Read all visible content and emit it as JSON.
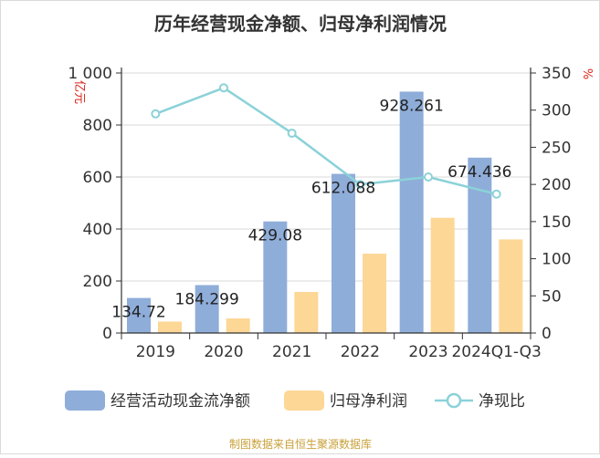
{
  "colors": {
    "bar1": "#8fadd9",
    "bar2": "#fdd796",
    "line": "#8bd2d8",
    "unit": "#d9251c",
    "source": "#c9a13b",
    "grid": "#d8d8d8",
    "axis": "#333333",
    "title": "#333333"
  },
  "chart_data": {
    "type": "bar+line",
    "title": "历年经营现金净额、归母净利润情况",
    "categories": [
      "2019",
      "2020",
      "2021",
      "2022",
      "2023",
      "2024Q1-Q3"
    ],
    "series": [
      {
        "name": "经营活动现金流净额",
        "type": "bar",
        "axis": "left",
        "values": [
          134.72,
          184.299,
          429.08,
          612.088,
          928.261,
          674.436
        ],
        "labels": [
          "134.72",
          "184.299",
          "429.08",
          "612.088",
          "928.261",
          "674.436"
        ]
      },
      {
        "name": "归母净利润",
        "type": "bar",
        "axis": "left",
        "values": [
          44,
          56,
          158,
          305,
          443,
          360
        ]
      },
      {
        "name": "净现比",
        "type": "line",
        "axis": "right",
        "values": [
          295,
          330,
          269,
          200,
          210,
          187
        ]
      }
    ],
    "y_left": {
      "unit": "亿元",
      "min": 0,
      "max": 1000,
      "ticks": [
        0,
        200,
        400,
        600,
        800,
        1000
      ],
      "tick_labels": [
        "0",
        "200",
        "400",
        "600",
        "800",
        "1 000"
      ]
    },
    "y_right": {
      "unit": "%",
      "min": 0,
      "max": 350,
      "ticks": [
        0,
        50,
        100,
        150,
        200,
        250,
        300,
        350
      ],
      "tick_labels": [
        "0",
        "50",
        "100",
        "150",
        "200",
        "250",
        "300",
        "350"
      ]
    },
    "grid": true,
    "legend_position": "bottom"
  },
  "legend": {
    "bar1": "经营活动现金流净额",
    "bar2": "归母净利润",
    "line": "净现比"
  },
  "source_note": "制图数据来自恒生聚源数据库"
}
